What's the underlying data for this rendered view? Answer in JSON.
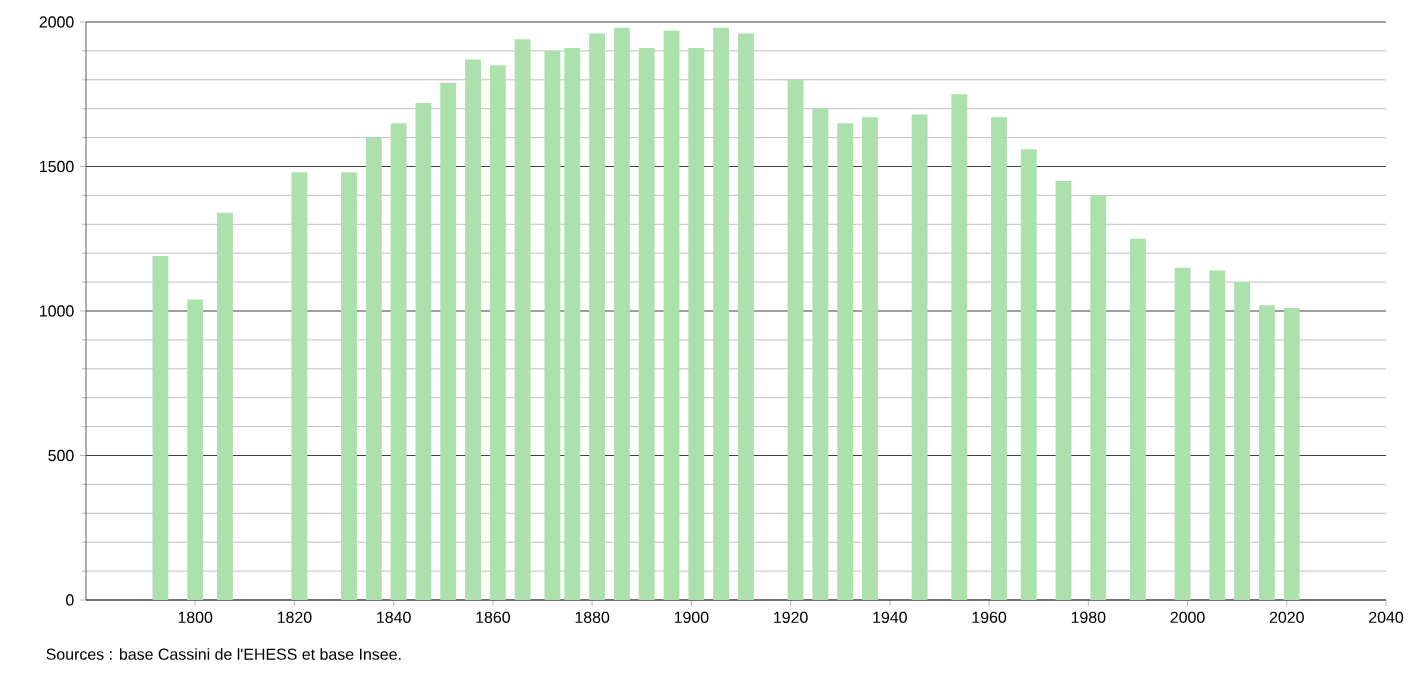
{
  "chart_data": {
    "type": "bar",
    "x": [
      1793,
      1800,
      1806,
      1821,
      1831,
      1836,
      1841,
      1846,
      1851,
      1856,
      1861,
      1866,
      1872,
      1876,
      1881,
      1886,
      1891,
      1896,
      1901,
      1906,
      1911,
      1921,
      1926,
      1931,
      1936,
      1946,
      1954,
      1962,
      1968,
      1975,
      1982,
      1990,
      1999,
      2006,
      2011,
      2016,
      2021
    ],
    "values": [
      1190,
      1040,
      1340,
      1480,
      1480,
      1600,
      1650,
      1720,
      1790,
      1870,
      1850,
      1940,
      1900,
      1910,
      1960,
      1980,
      1910,
      1970,
      1910,
      1980,
      1960,
      1800,
      1700,
      1650,
      1670,
      1680,
      1750,
      1670,
      1560,
      1450,
      1400,
      1250,
      1150,
      1140,
      1100,
      1020,
      1010
    ],
    "color": "#ace0ac",
    "xlim": [
      1778,
      2040
    ],
    "xticks": [
      1800,
      1820,
      1840,
      1860,
      1880,
      1900,
      1920,
      1940,
      1960,
      1980,
      2000,
      2020,
      2040
    ],
    "ylim": [
      0,
      2000
    ],
    "yticks": [
      0,
      500,
      1000,
      1500,
      2000
    ],
    "grid": "y",
    "annotations": [
      "Sources : base Cassini de l'EHESS et base Insee."
    ]
  }
}
